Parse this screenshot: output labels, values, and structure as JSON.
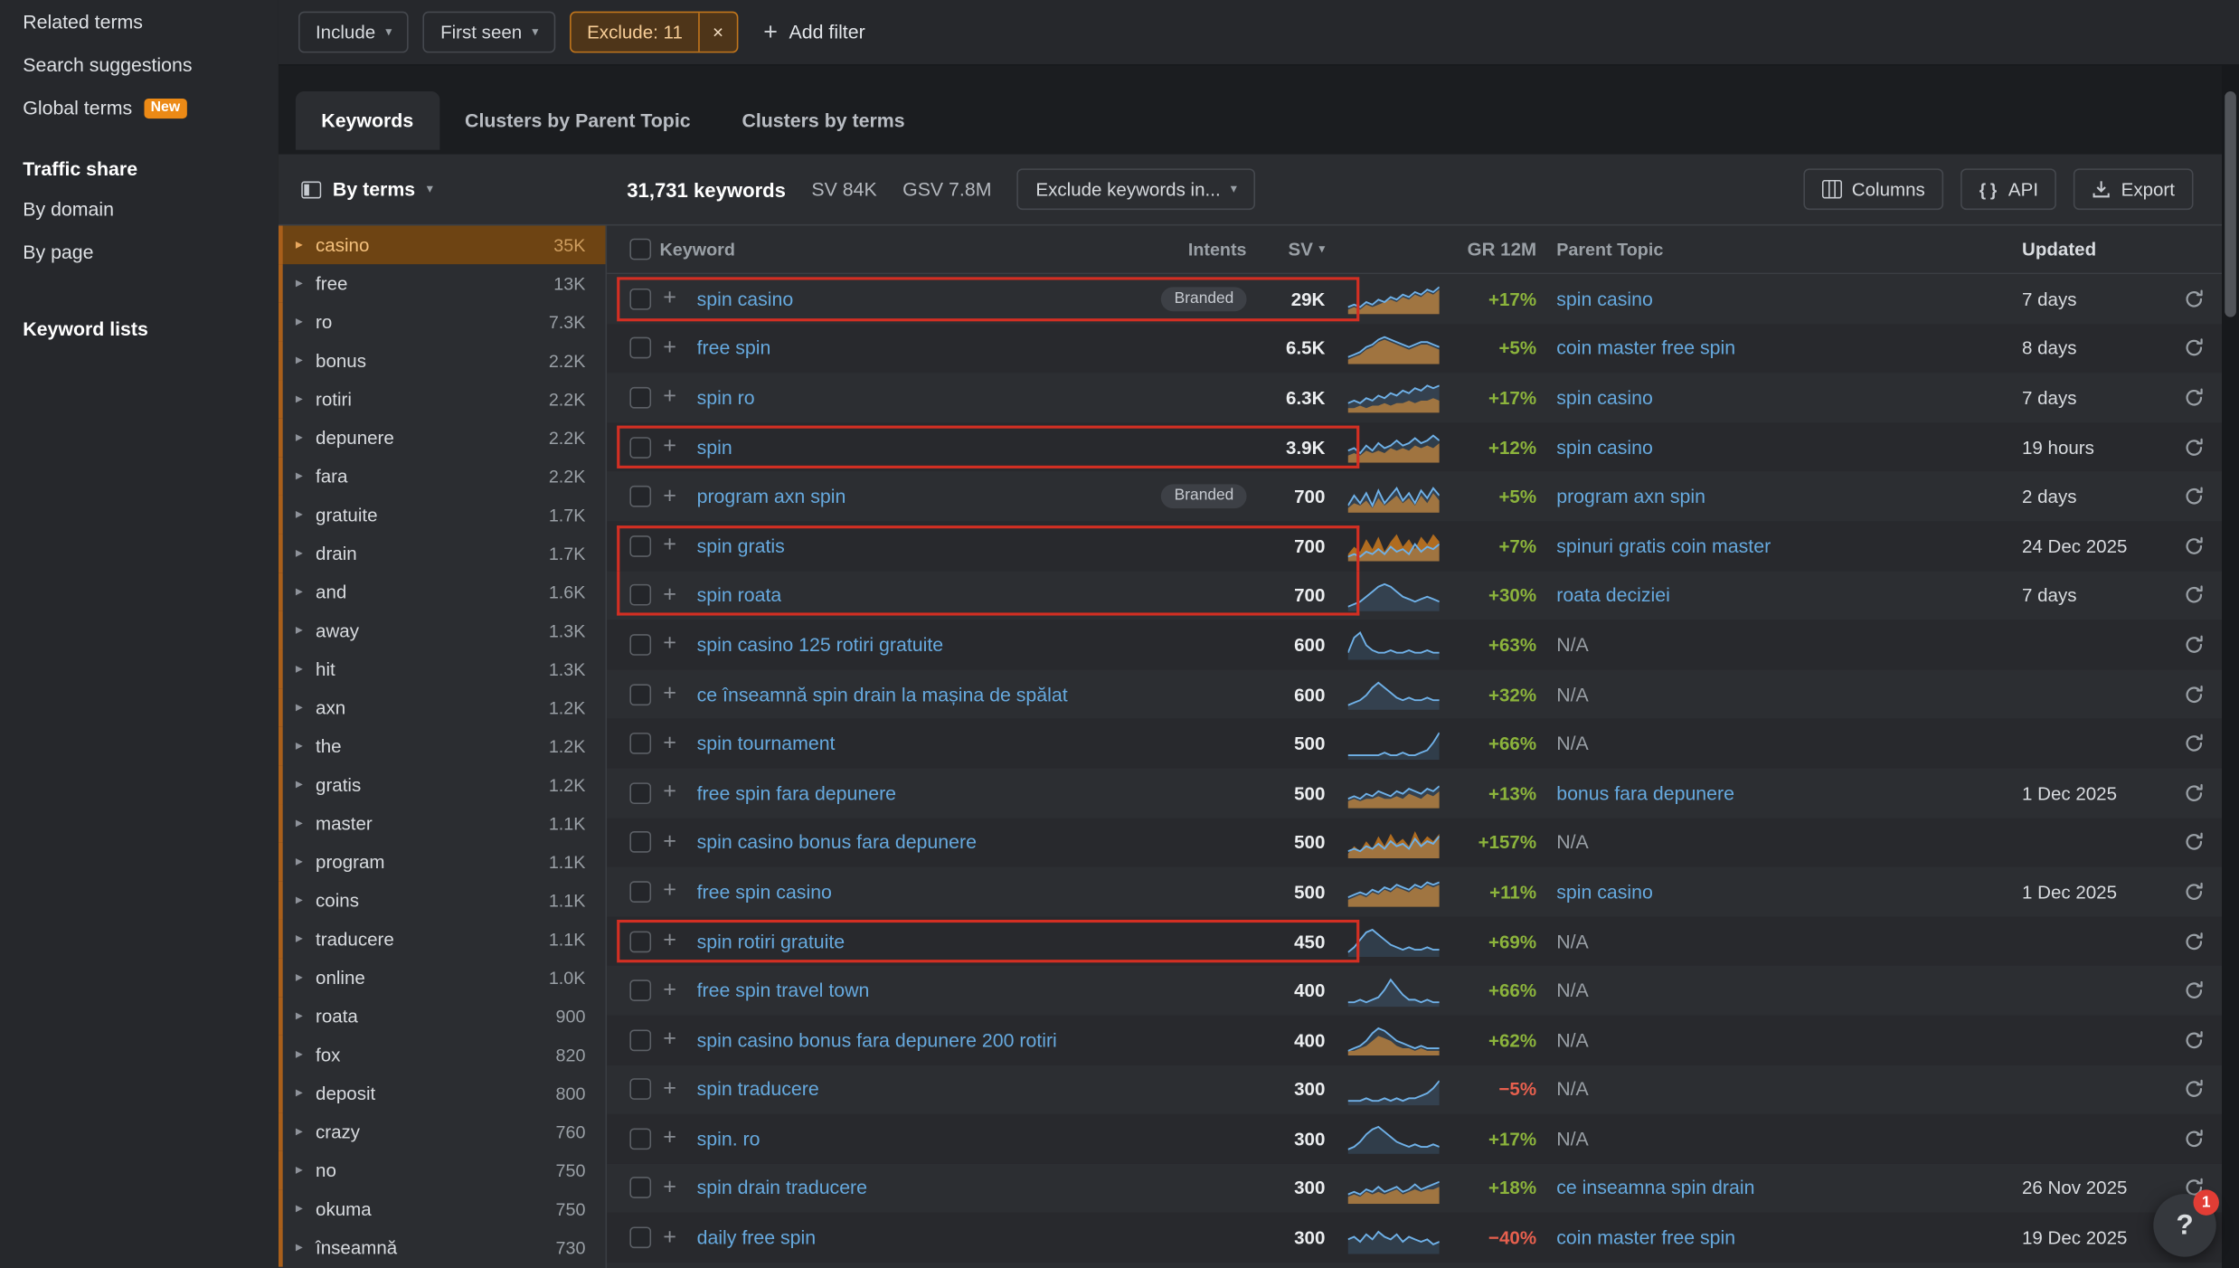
{
  "colors": {
    "accent_orange": "#ec8a16",
    "link_blue": "#66a9de",
    "positive_green": "#8cb43c",
    "negative_red": "#e8604e",
    "highlight_box_red": "#d32f23"
  },
  "sidebar": {
    "related_terms": "Related terms",
    "search_suggestions": "Search suggestions",
    "global_terms": "Global terms",
    "global_terms_badge": "New",
    "traffic_share": "Traffic share",
    "by_domain": "By domain",
    "by_page": "By page",
    "keyword_lists": "Keyword lists"
  },
  "filterbar": {
    "include": "Include",
    "first_seen": "First seen",
    "exclude": "Exclude: 11",
    "add_filter": "Add filter"
  },
  "tabs": {
    "keywords": "Keywords",
    "clusters_parent": "Clusters by Parent Topic",
    "clusters_terms": "Clusters by terms"
  },
  "controls": {
    "by_terms": "By terms",
    "stats_keywords": "31,731 keywords",
    "stats_sv": "SV 84K",
    "stats_gsv": "GSV 7.8M",
    "exclude_keywords_in": "Exclude keywords in...",
    "columns": "Columns",
    "api": "API",
    "export": "Export"
  },
  "terms": [
    {
      "t": "casino",
      "c": "35K",
      "sel": true
    },
    {
      "t": "free",
      "c": "13K"
    },
    {
      "t": "ro",
      "c": "7.3K"
    },
    {
      "t": "bonus",
      "c": "2.2K"
    },
    {
      "t": "rotiri",
      "c": "2.2K"
    },
    {
      "t": "depunere",
      "c": "2.2K"
    },
    {
      "t": "fara",
      "c": "2.2K"
    },
    {
      "t": "gratuite",
      "c": "1.7K"
    },
    {
      "t": "drain",
      "c": "1.7K"
    },
    {
      "t": "and",
      "c": "1.6K"
    },
    {
      "t": "away",
      "c": "1.3K"
    },
    {
      "t": "hit",
      "c": "1.3K"
    },
    {
      "t": "axn",
      "c": "1.2K"
    },
    {
      "t": "the",
      "c": "1.2K"
    },
    {
      "t": "gratis",
      "c": "1.2K"
    },
    {
      "t": "master",
      "c": "1.1K"
    },
    {
      "t": "program",
      "c": "1.1K"
    },
    {
      "t": "coins",
      "c": "1.1K"
    },
    {
      "t": "traducere",
      "c": "1.1K"
    },
    {
      "t": "online",
      "c": "1.0K"
    },
    {
      "t": "roata",
      "c": "900"
    },
    {
      "t": "fox",
      "c": "820"
    },
    {
      "t": "deposit",
      "c": "800"
    },
    {
      "t": "crazy",
      "c": "760"
    },
    {
      "t": "no",
      "c": "750"
    },
    {
      "t": "okuma",
      "c": "750"
    },
    {
      "t": "înseamnă",
      "c": "730"
    }
  ],
  "table": {
    "headers": {
      "keyword": "Keyword",
      "intents": "Intents",
      "sv": "SV",
      "gr": "GR 12M",
      "parent": "Parent Topic",
      "updated": "Updated"
    },
    "rows": [
      {
        "kw": "spin casino",
        "branded": true,
        "sv": "29K",
        "gr": "+17%",
        "parent": "spin casino",
        "updated": "7 days",
        "redbox": "full",
        "spark": [
          2,
          3,
          2,
          4,
          3,
          5,
          4,
          6,
          5,
          7,
          6,
          8,
          7,
          9,
          8,
          10
        ],
        "orange": [
          1,
          2,
          1,
          3,
          2,
          3,
          4,
          5,
          4,
          6,
          5,
          7,
          6,
          8,
          7,
          9
        ]
      },
      {
        "kw": "free spin",
        "sv": "6.5K",
        "gr": "+5%",
        "parent": "coin master free spin",
        "updated": "8 days",
        "spark": [
          2,
          3,
          4,
          6,
          7,
          9,
          10,
          9,
          8,
          7,
          6,
          7,
          8,
          8,
          7,
          6
        ],
        "orange": [
          1,
          2,
          3,
          5,
          6,
          8,
          9,
          8,
          7,
          6,
          5,
          6,
          7,
          7,
          6,
          5
        ]
      },
      {
        "kw": "spin ro",
        "sv": "6.3K",
        "gr": "+17%",
        "parent": "spin casino",
        "updated": "7 days",
        "spark": [
          3,
          4,
          3,
          5,
          4,
          6,
          5,
          7,
          6,
          8,
          7,
          9,
          8,
          10,
          9,
          10
        ],
        "orange": [
          1,
          1,
          2,
          1,
          2,
          2,
          3,
          2,
          3,
          3,
          4,
          3,
          4,
          4,
          5,
          4
        ]
      },
      {
        "kw": "spin",
        "sv": "3.9K",
        "gr": "+12%",
        "parent": "spin casino",
        "updated": "19 hours",
        "redbox": "full",
        "spark": [
          4,
          5,
          3,
          6,
          4,
          7,
          5,
          6,
          8,
          6,
          7,
          9,
          7,
          8,
          10,
          8
        ],
        "orange": [
          2,
          3,
          2,
          4,
          3,
          4,
          3,
          5,
          4,
          5,
          4,
          6,
          5,
          6,
          5,
          7
        ]
      },
      {
        "kw": "program axn spin",
        "branded": true,
        "sv": "700",
        "gr": "+5%",
        "parent": "program axn spin",
        "updated": "2 days",
        "spark": [
          2,
          6,
          3,
          7,
          2,
          8,
          3,
          6,
          9,
          4,
          7,
          3,
          8,
          5,
          9,
          6
        ],
        "orange": [
          1,
          3,
          2,
          4,
          1,
          5,
          2,
          4,
          6,
          3,
          5,
          2,
          6,
          3,
          7,
          4
        ]
      },
      {
        "kw": "spin gratis",
        "sv": "700",
        "gr": "+7%",
        "parent": "spinuri gratis coin master",
        "updated": "24 Dec 2025",
        "redbox": "top",
        "spark": [
          1,
          2,
          1,
          3,
          2,
          4,
          2,
          5,
          3,
          4,
          2,
          6,
          3,
          5,
          4,
          6
        ],
        "orange": [
          2,
          5,
          3,
          8,
          4,
          9,
          3,
          7,
          10,
          5,
          8,
          4,
          9,
          6,
          10,
          7
        ]
      },
      {
        "kw": "spin roata",
        "sv": "700",
        "gr": "+30%",
        "parent": "roata deciziei",
        "updated": "7 days",
        "redbox": "bottom",
        "spark": [
          1,
          2,
          3,
          5,
          7,
          9,
          10,
          9,
          7,
          5,
          4,
          3,
          4,
          5,
          4,
          3
        ]
      },
      {
        "kw": "spin casino 125 rotiri gratuite",
        "sv": "600",
        "gr": "+63%",
        "parent": "N/A",
        "parent_na": true,
        "updated": "",
        "spark": [
          2,
          8,
          10,
          5,
          3,
          2,
          2,
          3,
          2,
          2,
          3,
          2,
          2,
          3,
          2,
          2
        ]
      },
      {
        "kw": "ce înseamnă spin drain la mașina de spălat",
        "sv": "600",
        "gr": "+32%",
        "parent": "N/A",
        "parent_na": true,
        "updated": "",
        "spark": [
          1,
          2,
          3,
          5,
          8,
          10,
          8,
          6,
          4,
          3,
          4,
          3,
          3,
          4,
          3,
          3
        ]
      },
      {
        "kw": "spin tournament",
        "sv": "500",
        "gr": "+66%",
        "parent": "N/A",
        "parent_na": true,
        "updated": "",
        "spark": [
          1,
          1,
          1,
          1,
          1,
          1,
          2,
          1,
          1,
          2,
          1,
          1,
          2,
          3,
          6,
          10
        ]
      },
      {
        "kw": "free spin fara depunere",
        "sv": "500",
        "gr": "+13%",
        "parent": "bonus fara depunere",
        "updated": "1 Dec 2025",
        "spark": [
          3,
          4,
          3,
          5,
          4,
          6,
          5,
          4,
          6,
          5,
          7,
          6,
          5,
          7,
          6,
          8
        ],
        "orange": [
          2,
          3,
          2,
          3,
          3,
          4,
          3,
          3,
          4,
          3,
          5,
          4,
          3,
          5,
          4,
          6
        ]
      },
      {
        "kw": "spin casino bonus fara depunere",
        "sv": "500",
        "gr": "+157%",
        "parent": "N/A",
        "parent_na": true,
        "updated": "",
        "spark": [
          2,
          3,
          2,
          4,
          3,
          5,
          3,
          6,
          4,
          5,
          3,
          7,
          4,
          6,
          5,
          8
        ],
        "orange": [
          1,
          4,
          2,
          6,
          3,
          8,
          4,
          9,
          5,
          7,
          4,
          10,
          5,
          8,
          6,
          9
        ]
      },
      {
        "kw": "free spin casino",
        "sv": "500",
        "gr": "+11%",
        "parent": "spin casino",
        "updated": "1 Dec 2025",
        "spark": [
          3,
          4,
          5,
          4,
          6,
          5,
          7,
          6,
          8,
          7,
          6,
          8,
          7,
          9,
          8,
          9
        ],
        "orange": [
          2,
          3,
          4,
          3,
          5,
          4,
          6,
          5,
          7,
          6,
          5,
          7,
          6,
          8,
          7,
          8
        ]
      },
      {
        "kw": "spin rotiri gratuite",
        "sv": "450",
        "gr": "+69%",
        "parent": "N/A",
        "parent_na": true,
        "updated": "",
        "redbox": "full",
        "spark": [
          1,
          3,
          6,
          9,
          10,
          8,
          6,
          4,
          3,
          2,
          3,
          2,
          2,
          3,
          2,
          2
        ]
      },
      {
        "kw": "free spin travel town",
        "sv": "400",
        "gr": "+66%",
        "parent": "N/A",
        "parent_na": true,
        "updated": "",
        "spark": [
          1,
          1,
          2,
          1,
          2,
          3,
          6,
          10,
          7,
          4,
          2,
          2,
          1,
          2,
          1,
          1
        ]
      },
      {
        "kw": "spin casino bonus fara depunere 200 rotiri",
        "sv": "400",
        "gr": "+62%",
        "parent": "N/A",
        "parent_na": true,
        "updated": "",
        "spark": [
          1,
          2,
          3,
          5,
          8,
          10,
          9,
          7,
          5,
          4,
          3,
          2,
          3,
          2,
          2,
          2
        ],
        "orange": [
          1,
          1,
          2,
          3,
          5,
          7,
          6,
          5,
          3,
          2,
          2,
          1,
          2,
          1,
          1,
          1
        ]
      },
      {
        "kw": "spin traducere",
        "sv": "300",
        "gr": "−5%",
        "neg": true,
        "parent": "N/A",
        "parent_na": true,
        "updated": "",
        "spark": [
          1,
          1,
          1,
          2,
          1,
          1,
          2,
          1,
          2,
          1,
          2,
          2,
          3,
          4,
          6,
          9
        ]
      },
      {
        "kw": "spin. ro",
        "sv": "300",
        "gr": "+17%",
        "parent": "N/A",
        "parent_na": true,
        "updated": "",
        "spark": [
          1,
          2,
          4,
          7,
          9,
          10,
          8,
          6,
          4,
          3,
          2,
          3,
          2,
          2,
          3,
          2
        ]
      },
      {
        "kw": "spin drain traducere",
        "sv": "300",
        "gr": "+18%",
        "parent": "ce inseamna spin drain",
        "updated": "26 Nov 2025",
        "spark": [
          3,
          4,
          3,
          5,
          4,
          6,
          4,
          5,
          6,
          4,
          5,
          7,
          5,
          6,
          7,
          8
        ],
        "orange": [
          2,
          3,
          2,
          4,
          3,
          4,
          3,
          4,
          5,
          3,
          4,
          5,
          4,
          5,
          5,
          6
        ]
      },
      {
        "kw": "daily free spin",
        "sv": "300",
        "gr": "−40%",
        "neg": true,
        "parent": "coin master free spin",
        "updated": "19 Dec 2025",
        "spark": [
          5,
          6,
          4,
          7,
          5,
          8,
          6,
          5,
          7,
          4,
          6,
          5,
          4,
          5,
          3,
          4
        ]
      }
    ]
  },
  "badges": {
    "branded": "Branded"
  },
  "help": {
    "question": "?",
    "badge": "1"
  }
}
